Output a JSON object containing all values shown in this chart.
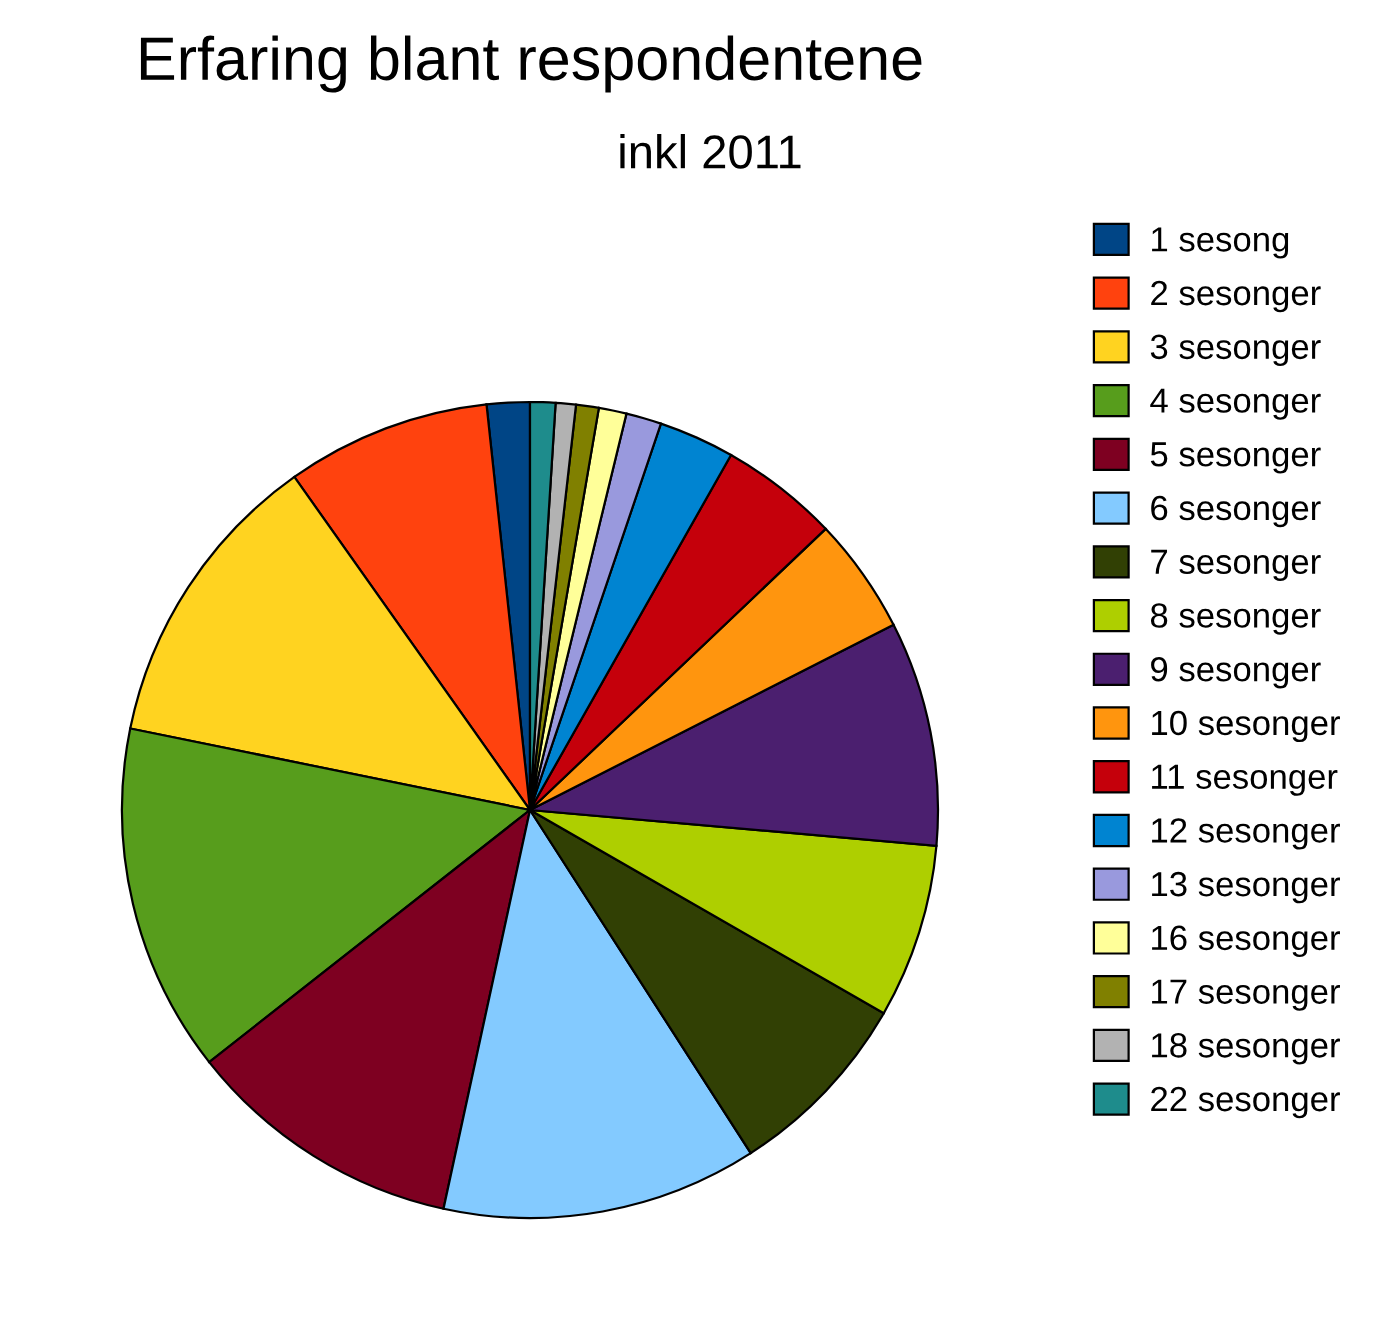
{
  "chart_data": {
    "type": "pie",
    "title": "Erfaring blant respondentene",
    "subtitle": "inkl 2011",
    "categories": [
      "1 sesong",
      "2 sesonger",
      "3 sesonger",
      "4 sesonger",
      "5 sesonger",
      "6 sesonger",
      "7 sesonger",
      "8 sesonger",
      "9 sesonger",
      "10 sesonger",
      "11 sesonger",
      "12 sesonger",
      "13 sesonger",
      "16 sesonger",
      "17 sesonger",
      "18 sesonger",
      "22 sesonger"
    ],
    "values": [
      1.7,
      8.1,
      12.0,
      13.8,
      11.0,
      12.5,
      7.6,
      6.9,
      8.9,
      4.6,
      4.7,
      3.0,
      1.4,
      1.1,
      0.9,
      0.8,
      1.0
    ],
    "colors": [
      "#004586",
      "#ff420e",
      "#ffd320",
      "#579d1c",
      "#7e0021",
      "#83caff",
      "#314004",
      "#aecf00",
      "#4b1f6f",
      "#ff950e",
      "#c5000b",
      "#0084d1",
      "#9999dd",
      "#ffff99",
      "#808000",
      "#b2b2b2",
      "#1e8c8c"
    ],
    "legend": "right"
  }
}
